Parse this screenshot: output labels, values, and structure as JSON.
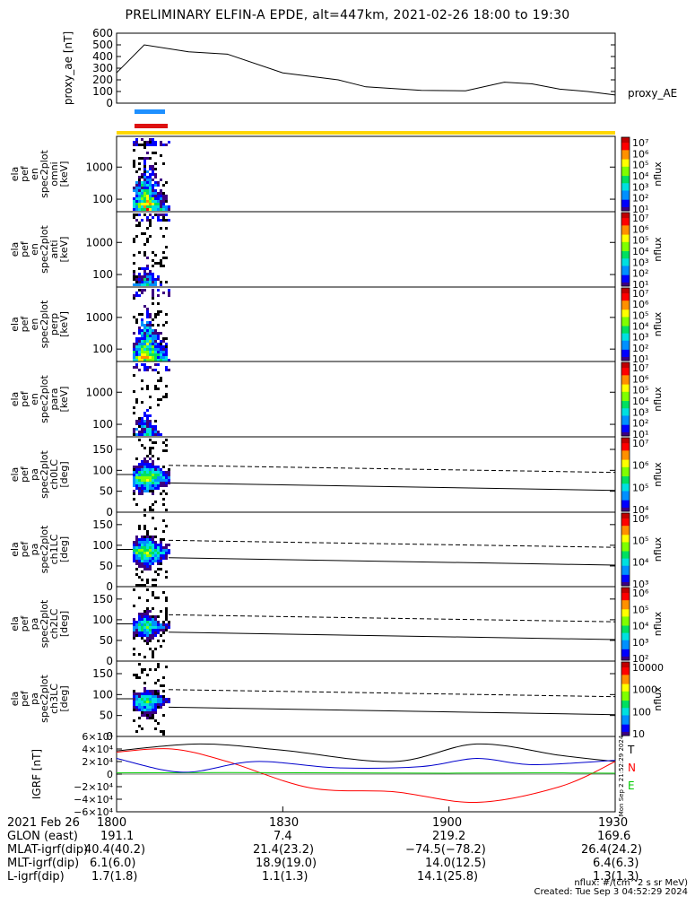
{
  "title": "PRELIMINARY ELFIN-A EPDE, alt=447km, 2021-02-26 18:00 to 19:30",
  "colors": {
    "blue_bar": "#1e90ff",
    "red_bar": "#dd1111",
    "yellow_bar": "#ffd700",
    "igrf_t": "#000000",
    "igrf_n": "#ff0000",
    "igrf_e": "#00cc00",
    "igrf_b": "#0000cc"
  },
  "chart_data": [
    {
      "type": "line",
      "title": "PRELIMINARY ELFIN-A EPDE, alt=447km, 2021-02-26 18:00 to 19:30",
      "ylabel": "proxy_ae [nT]",
      "legend": "proxy_AE",
      "ylim": [
        0,
        600
      ],
      "yticks": [
        "0",
        "100",
        "200",
        "300",
        "400",
        "500",
        "600"
      ],
      "x_minutes": [
        0,
        5,
        13,
        20,
        30,
        40,
        45,
        55,
        63,
        70,
        75,
        80,
        85,
        90
      ],
      "values": [
        260,
        500,
        440,
        420,
        260,
        200,
        140,
        110,
        105,
        180,
        165,
        120,
        100,
        70
      ]
    },
    {
      "type": "heatmap",
      "panels": [
        {
          "ylabel": [
            "ela",
            "pef",
            "en",
            "spec2plot",
            "omni",
            "[keV]"
          ],
          "yticks": [
            "100",
            "1000"
          ],
          "cb_ticks": [
            "10⁷",
            "10⁶",
            "10⁵",
            "10⁴",
            "10³",
            "10²",
            "10¹"
          ],
          "cb_label": "nflux"
        },
        {
          "ylabel": [
            "ela",
            "pef",
            "en",
            "spec2plot",
            "anti",
            "[keV]"
          ],
          "yticks": [
            "100",
            "1000"
          ],
          "cb_ticks": [
            "10⁷",
            "10⁶",
            "10⁵",
            "10⁴",
            "10³",
            "10²",
            "10¹"
          ],
          "cb_label": "nflux"
        },
        {
          "ylabel": [
            "ela",
            "pef",
            "en",
            "spec2plot",
            "perp",
            "[keV]"
          ],
          "yticks": [
            "100",
            "1000"
          ],
          "cb_ticks": [
            "10⁷",
            "10⁶",
            "10⁵",
            "10⁴",
            "10³",
            "10²",
            "10¹"
          ],
          "cb_label": "nflux"
        },
        {
          "ylabel": [
            "ela",
            "pef",
            "en",
            "spec2plot",
            "para",
            "[keV]"
          ],
          "yticks": [
            "100",
            "1000"
          ],
          "cb_ticks": [
            "10⁷",
            "10⁶",
            "10⁵",
            "10⁴",
            "10³",
            "10²",
            "10¹"
          ],
          "cb_label": "nflux"
        },
        {
          "ylabel": [
            "ela",
            "pef",
            "pa",
            "spec2plot",
            "ch0LC",
            "[deg]"
          ],
          "yticks": [
            "0",
            "50",
            "100",
            "150"
          ],
          "cb_ticks": [
            "10⁷",
            "10⁶",
            "10⁵",
            "10⁴"
          ],
          "cb_label": "nflux"
        },
        {
          "ylabel": [
            "ela",
            "pef",
            "pa",
            "spec2plot",
            "ch1LC",
            "[deg]"
          ],
          "yticks": [
            "0",
            "50",
            "100",
            "150"
          ],
          "cb_ticks": [
            "10⁶",
            "10⁵",
            "10⁴",
            "10³"
          ],
          "cb_label": "nflux"
        },
        {
          "ylabel": [
            "ela",
            "pef",
            "pa",
            "spec2plot",
            "ch2LC",
            "[deg]"
          ],
          "yticks": [
            "0",
            "50",
            "100",
            "150"
          ],
          "cb_ticks": [
            "10⁶",
            "10⁵",
            "10⁴",
            "10³",
            "10²"
          ],
          "cb_label": "nflux"
        },
        {
          "ylabel": [
            "ela",
            "pef",
            "pa",
            "spec2plot",
            "ch3LC",
            "[deg]"
          ],
          "yticks": [
            "0",
            "50",
            "100",
            "150"
          ],
          "cb_ticks": [
            "10000",
            "1000",
            "100",
            "10"
          ],
          "cb_label": "nflux"
        }
      ]
    },
    {
      "type": "line",
      "ylabel": "IGRF [nT]",
      "ylim": [
        -60000,
        60000
      ],
      "yticks": [
        "6×10⁴",
        "4×10⁴",
        "2×10⁴",
        "0",
        "−2×10⁴",
        "−4×10⁴",
        "−6×10⁴"
      ],
      "legend": [
        "T",
        "N",
        "E"
      ],
      "series": [
        {
          "name": "T",
          "x_minutes": [
            0,
            15,
            30,
            50,
            65,
            80,
            90
          ],
          "values": [
            37000,
            48000,
            38000,
            20000,
            48000,
            30000,
            20000
          ]
        },
        {
          "name": "N",
          "x_minutes": [
            0,
            10,
            20,
            35,
            50,
            65,
            80,
            90
          ],
          "values": [
            35000,
            40000,
            20000,
            -22000,
            -28000,
            -45000,
            -20000,
            20000
          ]
        },
        {
          "name": "E",
          "x_minutes": [
            0,
            20,
            40,
            60,
            75,
            90
          ],
          "values": [
            2000,
            2500,
            2000,
            1500,
            2000,
            1500
          ]
        },
        {
          "name": "B",
          "x_minutes": [
            0,
            12,
            25,
            40,
            55,
            65,
            75,
            90
          ],
          "values": [
            25000,
            3000,
            20000,
            10000,
            12000,
            25000,
            15000,
            22000
          ]
        }
      ]
    }
  ],
  "right_stamp": "Mon Sep 2 21:52:29 2024",
  "footer": {
    "rows": [
      {
        "label": "2021 Feb 26",
        "values": [
          "1800",
          "1830",
          "1900",
          "1930"
        ]
      },
      {
        "label": "GLON (east)",
        "values": [
          "191.1",
          "7.4",
          "219.2",
          "169.6"
        ]
      },
      {
        "label": "MLAT-igrf(dip)",
        "values": [
          "40.4(40.2)",
          "21.4(23.2)",
          "−74.5(−78.2)",
          "26.4(24.2)"
        ]
      },
      {
        "label": "MLT-igrf(dip)",
        "values": [
          "6.1(6.0)",
          "18.9(19.0)",
          "14.0(12.5)",
          "6.4(6.3)"
        ]
      },
      {
        "label": "L-igrf(dip)",
        "values": [
          "1.7(1.8)",
          "1.1(1.3)",
          "14.1(25.8)",
          "1.3(1.3)"
        ]
      }
    ],
    "units_note": "nflux: #/(cm^2 s sr MeV)",
    "created": "Created: Tue Sep  3 04:52:29 2024"
  }
}
